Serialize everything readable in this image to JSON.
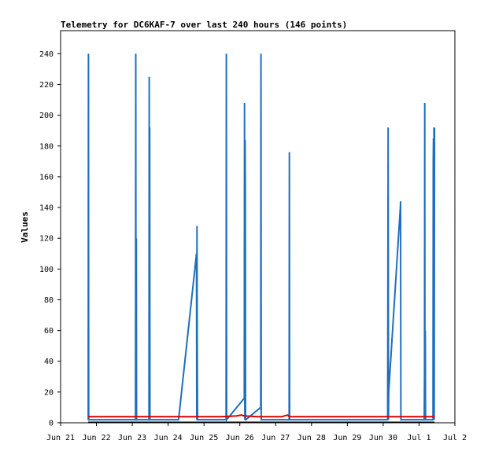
{
  "chart_data": {
    "type": "line",
    "title": "Telemetry for DC6KAF-7 over last 240 hours (146 points)",
    "ylabel": "Values",
    "xlabel": "",
    "ylim": [
      0,
      255
    ],
    "xlim": [
      "2022-06-21",
      "2022-07-02"
    ],
    "yticks": [
      0,
      20,
      40,
      60,
      80,
      100,
      120,
      140,
      160,
      180,
      200,
      220,
      240
    ],
    "xticks": [
      {
        "date": "2022-06-21",
        "label": "Jun 21"
      },
      {
        "date": "2022-06-22",
        "label": "Jun 22"
      },
      {
        "date": "2022-06-23",
        "label": "Jun 23"
      },
      {
        "date": "2022-06-24",
        "label": "Jun 24"
      },
      {
        "date": "2022-06-25",
        "label": "Jun 25"
      },
      {
        "date": "2022-06-26",
        "label": "Jun 26"
      },
      {
        "date": "2022-06-27",
        "label": "Jun 27"
      },
      {
        "date": "2022-06-28",
        "label": "Jun 28"
      },
      {
        "date": "2022-06-29",
        "label": "Jun 29"
      },
      {
        "date": "2022-06-30",
        "label": "Jun 30"
      },
      {
        "date": "2022-07-01",
        "label": "Jul 1"
      },
      {
        "date": "2022-07-02",
        "label": "Jul 2"
      }
    ],
    "grid": false,
    "series": [
      {
        "color": "#1f6fbf",
        "x": [
          "2022-06-21 18:30",
          "2022-06-21 18:40",
          "2022-06-21 18:50",
          "2022-06-23 02:10",
          "2022-06-23 02:20",
          "2022-06-23 02:30",
          "2022-06-23 02:40",
          "2022-06-23 02:50",
          "2022-06-23 03:00",
          "2022-06-23 11:10",
          "2022-06-23 11:20",
          "2022-06-23 11:30",
          "2022-06-23 11:40",
          "2022-06-23 11:50",
          "2022-06-24 07:00",
          "2022-06-24 19:00",
          "2022-06-24 19:10",
          "2022-06-24 19:20",
          "2022-06-24 19:30",
          "2022-06-24 19:40",
          "2022-06-25 14:50",
          "2022-06-25 15:00",
          "2022-06-25 15:10",
          "2022-06-26 03:00",
          "2022-06-26 03:10",
          "2022-06-26 03:20",
          "2022-06-26 03:30",
          "2022-06-26 03:40",
          "2022-06-26 03:50",
          "2022-06-26 04:00",
          "2022-06-26 14:00",
          "2022-06-26 14:10",
          "2022-06-26 14:20",
          "2022-06-26 14:30",
          "2022-06-27 09:00",
          "2022-06-27 09:10",
          "2022-06-27 09:20",
          "2022-06-30 03:00",
          "2022-06-30 03:10",
          "2022-06-30 03:20",
          "2022-06-30 03:30",
          "2022-06-30 03:40",
          "2022-06-30 11:30",
          "2022-06-30 11:40",
          "2022-06-30 11:50",
          "2022-06-30 12:00",
          "2022-07-01 03:30",
          "2022-07-01 03:40",
          "2022-07-01 03:50",
          "2022-07-01 04:00",
          "2022-07-01 04:10",
          "2022-07-01 04:20",
          "2022-07-01 09:20",
          "2022-07-01 09:30",
          "2022-07-01 09:40",
          "2022-07-01 09:50",
          "2022-07-01 10:00",
          "2022-07-01 10:10",
          "2022-07-01 10:20"
        ],
        "y": [
          2,
          240,
          2,
          2,
          240,
          2,
          120,
          2,
          2,
          2,
          225,
          2,
          192,
          2,
          2,
          110,
          2,
          128,
          50,
          2,
          2,
          240,
          2,
          16,
          208,
          2,
          184,
          155,
          2,
          2,
          10,
          240,
          2,
          2,
          2,
          176,
          2,
          2,
          96,
          192,
          2,
          20,
          140,
          144,
          2,
          2,
          2,
          30,
          208,
          2,
          60,
          2,
          2,
          170,
          185,
          2,
          192,
          2,
          192
        ]
      },
      {
        "color": "#dd0000",
        "x": [
          "2022-06-21 18:30",
          "2022-06-22 12:00",
          "2022-06-23 12:00",
          "2022-06-24 12:00",
          "2022-06-25 12:00",
          "2022-06-25 22:00",
          "2022-06-26 01:00",
          "2022-06-26 03:00",
          "2022-06-26 12:00",
          "2022-06-27 04:00",
          "2022-06-27 06:00",
          "2022-06-27 08:00",
          "2022-06-27 09:20",
          "2022-06-28 12:00",
          "2022-06-29 12:00",
          "2022-06-30 12:00",
          "2022-07-01 10:20"
        ],
        "y": [
          4,
          4,
          4,
          4,
          4,
          4.5,
          5,
          4.5,
          4,
          4,
          4.5,
          5,
          4,
          4,
          4,
          4,
          4
        ]
      },
      {
        "color": "#000000",
        "x": [
          "2022-06-21 18:30",
          "2022-07-01 10:20"
        ],
        "y": [
          0.5,
          0.5
        ]
      }
    ]
  }
}
